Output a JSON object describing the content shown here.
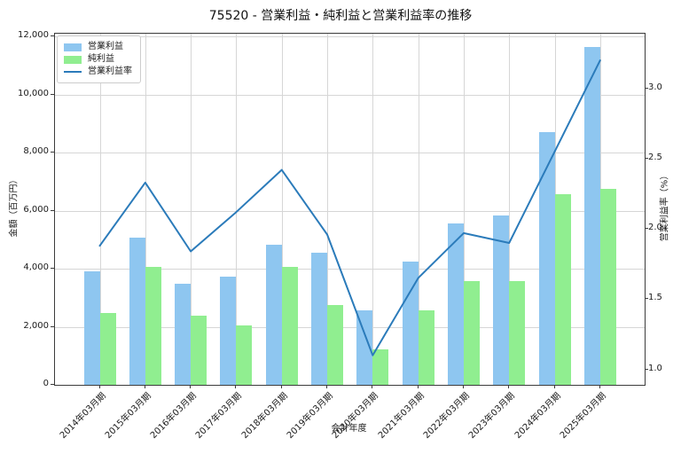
{
  "title": "75520 - 営業利益・純利益と営業利益率の推移",
  "chart_data": {
    "type": "bar",
    "subtype": "grouped-bars-with-line",
    "title": "75520 - 営業利益・純利益と営業利益率の推移",
    "xlabel": "会計年度",
    "ylabel_left": "金額（百万円）",
    "ylabel_right": "営業利益率（%）",
    "grid": true,
    "legend_position": "upper left",
    "categories": [
      "2014年03月期",
      "2015年03月期",
      "2016年03月期",
      "2017年03月期",
      "2018年03月期",
      "2019年03月期",
      "2020年03月期",
      "2021年03月期",
      "2022年03月期",
      "2023年03月期",
      "2024年03月期",
      "2025年03月期"
    ],
    "series": [
      {
        "name": "営業利益",
        "type": "bar",
        "axis": "left",
        "color": "#8ec6f0",
        "values": [
          3900,
          5060,
          3470,
          3730,
          4820,
          4560,
          2570,
          4250,
          5570,
          5830,
          8700,
          11650
        ]
      },
      {
        "name": "純利益",
        "type": "bar",
        "axis": "left",
        "color": "#90ee90",
        "values": [
          2470,
          4060,
          2370,
          2040,
          4060,
          2760,
          1230,
          2580,
          3560,
          3560,
          6560,
          6750
        ]
      },
      {
        "name": "営業利益率",
        "type": "line",
        "axis": "right",
        "color": "#2b7bba",
        "values": [
          1.88,
          2.33,
          1.84,
          2.12,
          2.42,
          1.96,
          1.1,
          1.65,
          1.97,
          1.9,
          2.55,
          3.2
        ]
      }
    ],
    "ylim_left": [
      0,
      12100
    ],
    "yticks_left": [
      {
        "v": 0,
        "label": "0"
      },
      {
        "v": 2000,
        "label": "2,000"
      },
      {
        "v": 4000,
        "label": "4,000"
      },
      {
        "v": 6000,
        "label": "6,000"
      },
      {
        "v": 8000,
        "label": "8,000"
      },
      {
        "v": 10000,
        "label": "10,000"
      },
      {
        "v": 12000,
        "label": "12,000"
      }
    ],
    "ylim_right": [
      0.89,
      3.39
    ],
    "yticks_right": [
      {
        "v": 1.0,
        "label": "1.0"
      },
      {
        "v": 1.5,
        "label": "1.5"
      },
      {
        "v": 2.0,
        "label": "2.0"
      },
      {
        "v": 2.5,
        "label": "2.5"
      },
      {
        "v": 3.0,
        "label": "3.0"
      }
    ],
    "colors": {
      "grid": "#d6d6d6",
      "spine": "#3c3c3c",
      "background": "#ffffff",
      "text": "#1a1a1a"
    }
  }
}
